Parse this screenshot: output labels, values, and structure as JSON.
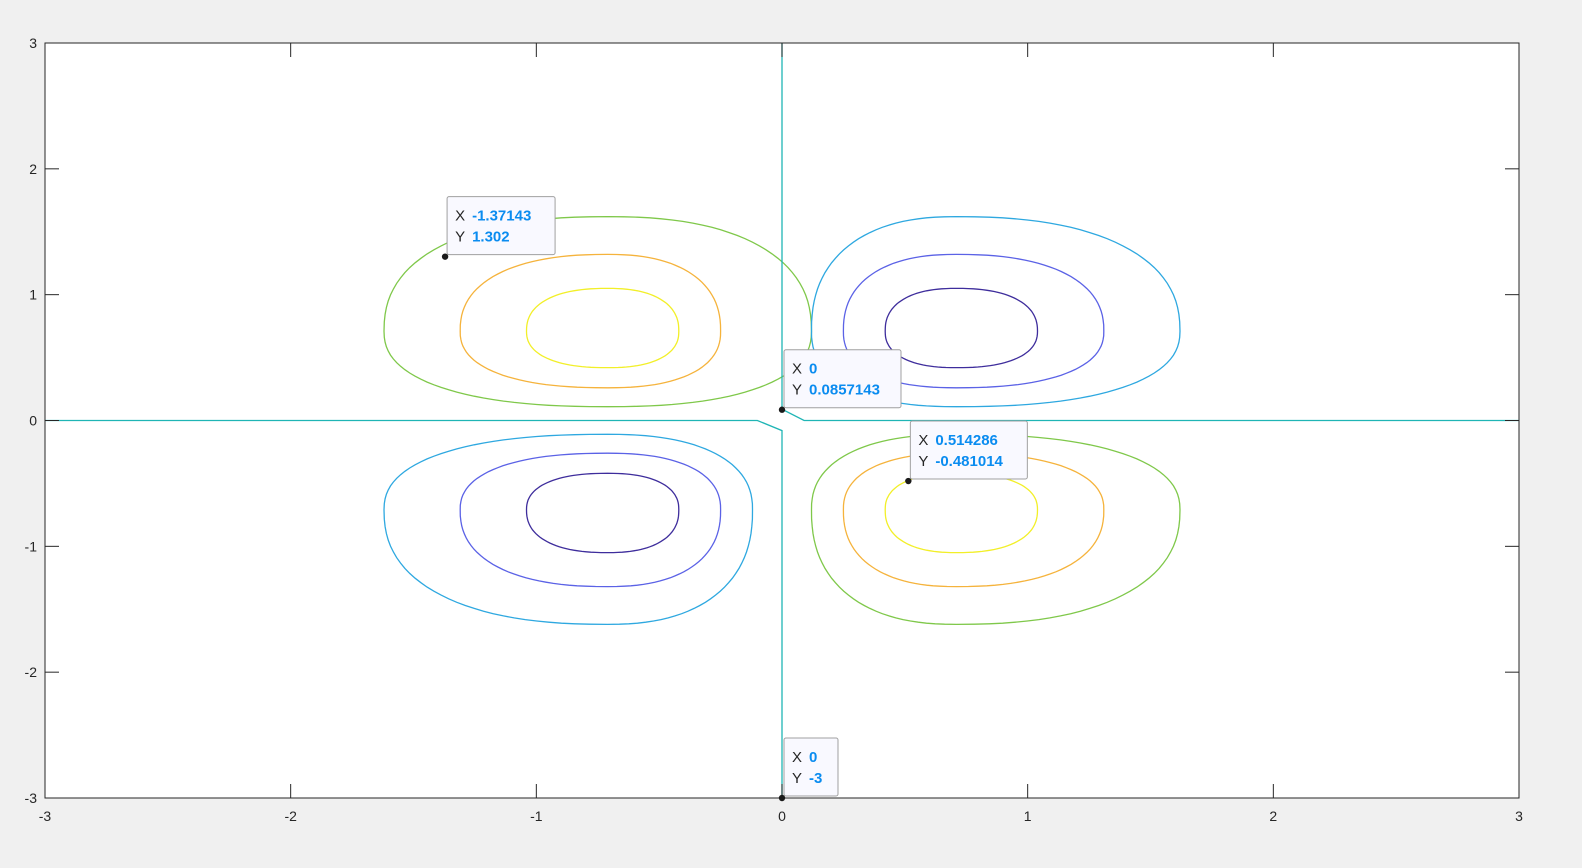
{
  "chart_data": {
    "type": "contour",
    "xlim": [
      -3,
      3
    ],
    "ylim": [
      -3,
      3
    ],
    "x_ticks": [
      "-3",
      "-2",
      "-1",
      "0",
      "1",
      "2",
      "3"
    ],
    "y_ticks": [
      "3",
      "2",
      "1",
      "0",
      "-1",
      "-2",
      "-3"
    ],
    "x_tick_values": [
      -3,
      -2,
      -1,
      0,
      1,
      2,
      3
    ],
    "y_tick_values": [
      3,
      2,
      1,
      0,
      -1,
      -2,
      -3
    ],
    "grid": false,
    "colors": {
      "level_neg3": "#3e2d9c",
      "level_neg2": "#5b62e6",
      "level_neg1": "#2ea8e0",
      "level_0": "#1fb5b5",
      "level_1": "#7fc84a",
      "level_2": "#f5b33c",
      "level_3": "#f2ef28"
    },
    "contours": [
      {
        "name": "level_1",
        "center": [
          -0.71,
          0.71
        ],
        "x_extent": [
          -1.62,
          0.12
        ],
        "y_extent": [
          0.11,
          1.62
        ]
      },
      {
        "name": "level_2",
        "center": [
          -0.71,
          0.71
        ],
        "x_extent": [
          -1.31,
          -0.25
        ],
        "y_extent": [
          0.26,
          1.32
        ]
      },
      {
        "name": "level_3",
        "center": [
          -0.71,
          0.71
        ],
        "x_extent": [
          -1.04,
          -0.42
        ],
        "y_extent": [
          0.42,
          1.05
        ]
      },
      {
        "name": "level_neg1",
        "center": [
          0.71,
          0.71
        ],
        "x_extent": [
          0.12,
          1.62
        ],
        "y_extent": [
          0.11,
          1.62
        ]
      },
      {
        "name": "level_neg2",
        "center": [
          0.71,
          0.71
        ],
        "x_extent": [
          0.25,
          1.31
        ],
        "y_extent": [
          0.26,
          1.32
        ]
      },
      {
        "name": "level_neg3",
        "center": [
          0.71,
          0.71
        ],
        "x_extent": [
          0.42,
          1.04
        ],
        "y_extent": [
          0.42,
          1.05
        ]
      },
      {
        "name": "level_neg1",
        "center": [
          -0.71,
          -0.71
        ],
        "x_extent": [
          -1.62,
          -0.12
        ],
        "y_extent": [
          -1.62,
          -0.11
        ]
      },
      {
        "name": "level_neg2",
        "center": [
          -0.71,
          -0.71
        ],
        "x_extent": [
          -1.31,
          -0.25
        ],
        "y_extent": [
          -1.32,
          -0.26
        ]
      },
      {
        "name": "level_neg3",
        "center": [
          -0.71,
          -0.71
        ],
        "x_extent": [
          -1.04,
          -0.42
        ],
        "y_extent": [
          -1.05,
          -0.42
        ]
      },
      {
        "name": "level_1",
        "center": [
          0.71,
          -0.71
        ],
        "x_extent": [
          0.12,
          1.62
        ],
        "y_extent": [
          -1.62,
          -0.11
        ]
      },
      {
        "name": "level_2",
        "center": [
          0.71,
          -0.71
        ],
        "x_extent": [
          0.25,
          1.31
        ],
        "y_extent": [
          -1.32,
          -0.26
        ]
      },
      {
        "name": "level_3",
        "center": [
          0.71,
          -0.71
        ],
        "x_extent": [
          0.42,
          1.04
        ],
        "y_extent": [
          -1.05,
          -0.42
        ]
      }
    ],
    "zero_contour": {
      "name": "level_0",
      "points": [
        [
          [
            -3,
            0
          ],
          [
            -0.1,
            0
          ],
          [
            0,
            -0.08
          ],
          [
            0,
            -3
          ]
        ],
        [
          [
            0,
            3
          ],
          [
            0,
            0.09
          ],
          [
            0.09,
            0
          ],
          [
            3,
            0
          ]
        ]
      ]
    },
    "datatips": [
      {
        "x": "-1.37143",
        "y": "1.302",
        "px": -1.37143,
        "py": 1.302
      },
      {
        "x": "0",
        "y": "0.0857143",
        "px": 0,
        "py": 0.0857143
      },
      {
        "x": "0.514286",
        "y": "-0.481014",
        "px": 0.514286,
        "py": -0.481014
      },
      {
        "x": "0",
        "y": "-3",
        "px": 0,
        "py": -3
      }
    ],
    "datatip_labels": {
      "x_key": "X",
      "y_key": "Y"
    }
  }
}
